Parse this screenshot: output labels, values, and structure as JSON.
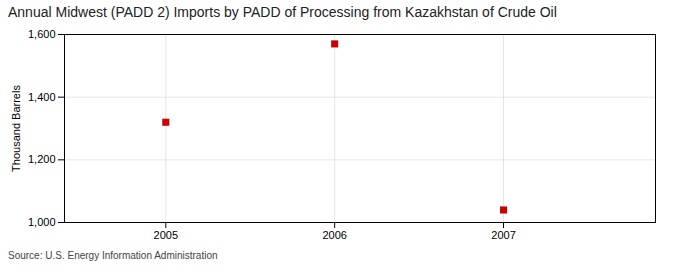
{
  "chart_data": {
    "type": "scatter",
    "title": "Annual Midwest (PADD 2) Imports by PADD of Processing from Kazakhstan of Crude Oil",
    "ylabel": "Thousand Barrels",
    "source": "Source: U.S. Energy Information Administration",
    "x": [
      2005,
      2006,
      2007
    ],
    "values": [
      1320,
      1570,
      1040
    ],
    "color": "#cc0000",
    "marker": "square",
    "xlim": [
      2004.4,
      2007.9
    ],
    "xticks": [
      2005,
      2006,
      2007
    ],
    "ylim": [
      1000,
      1600
    ],
    "yticks": [
      {
        "value": 1000,
        "label": "1,000"
      },
      {
        "value": 1200,
        "label": "1,200"
      },
      {
        "value": 1400,
        "label": "1,400"
      },
      {
        "value": 1600,
        "label": "1,600"
      }
    ],
    "grid": true
  }
}
